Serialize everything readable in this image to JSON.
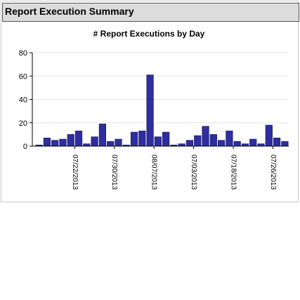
{
  "panel": {
    "title": "Report Execution Summary"
  },
  "colors": {
    "bar_fill": "#2e2ea0",
    "bar_stroke": "#14145a",
    "axis": "#000000",
    "grid": "#e6e6e6",
    "header_bg": "#dcdcdc"
  },
  "chart_data": {
    "type": "bar",
    "title": "# Report Executions by Day",
    "xlabel": "",
    "ylabel": "",
    "ylim": [
      0,
      80
    ],
    "yticks": [
      0,
      20,
      40,
      60,
      80
    ],
    "grid": true,
    "legend": "none",
    "values": [
      1,
      7,
      5,
      6,
      10,
      13,
      2,
      8,
      19,
      4,
      6,
      1,
      12,
      13,
      61,
      8,
      12,
      1,
      2,
      5,
      9,
      17,
      10,
      5,
      13,
      4,
      2,
      6,
      2,
      18,
      7,
      4
    ],
    "date_labels": [
      {
        "index": 4,
        "label": "07/22/2013"
      },
      {
        "index": 9,
        "label": "07/30/2013"
      },
      {
        "index": 14,
        "label": "08/07/2013"
      },
      {
        "index": 19,
        "label": "07/03/2013"
      },
      {
        "index": 24,
        "label": "07/18/2013"
      },
      {
        "index": 29,
        "label": "07/26/2013"
      }
    ]
  }
}
